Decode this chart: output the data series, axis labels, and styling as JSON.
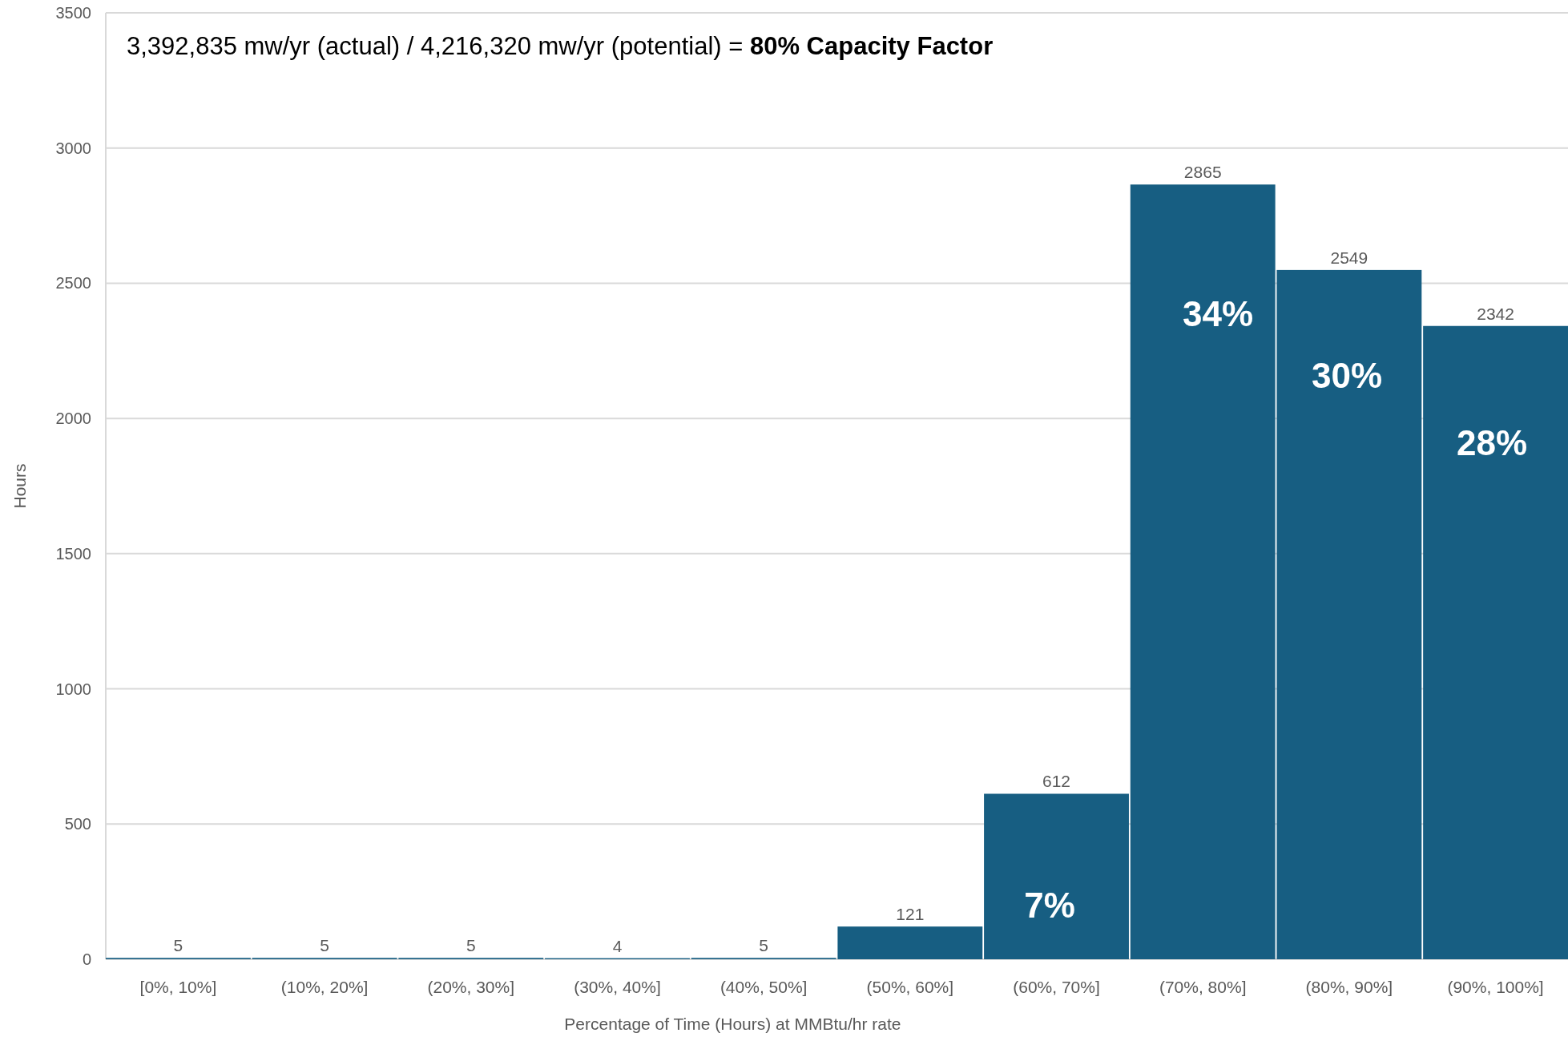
{
  "chart_data": {
    "type": "bar",
    "title": "3,392,835 mw/yr (actual) / 4,216,320 mw/yr (potential) =",
    "subtitle": "80% Capacity Factor",
    "xlabel": "Percentage of Time (Hours) at MMBtu/hr rate",
    "ylabel": "Hours",
    "categories": [
      "[0%, 10%]",
      "(10%, 20%]",
      "(20%, 30%]",
      "(30%, 40%]",
      "(40%, 50%]",
      "(50%, 60%]",
      "(60%, 70%]",
      "(70%, 80%]",
      "(80%, 90%]",
      "(90%, 100%]"
    ],
    "values": [
      5,
      5,
      5,
      4,
      5,
      121,
      612,
      2865,
      2549,
      2342
    ],
    "color": "#175e82",
    "ylim": [
      0,
      3500
    ],
    "yticks": [
      0,
      500,
      1000,
      1500,
      2000,
      2500,
      3000,
      3500
    ],
    "grid": "y",
    "data_labels": true,
    "annotations": [
      "7%",
      "34%",
      "30%",
      "28%"
    ]
  }
}
